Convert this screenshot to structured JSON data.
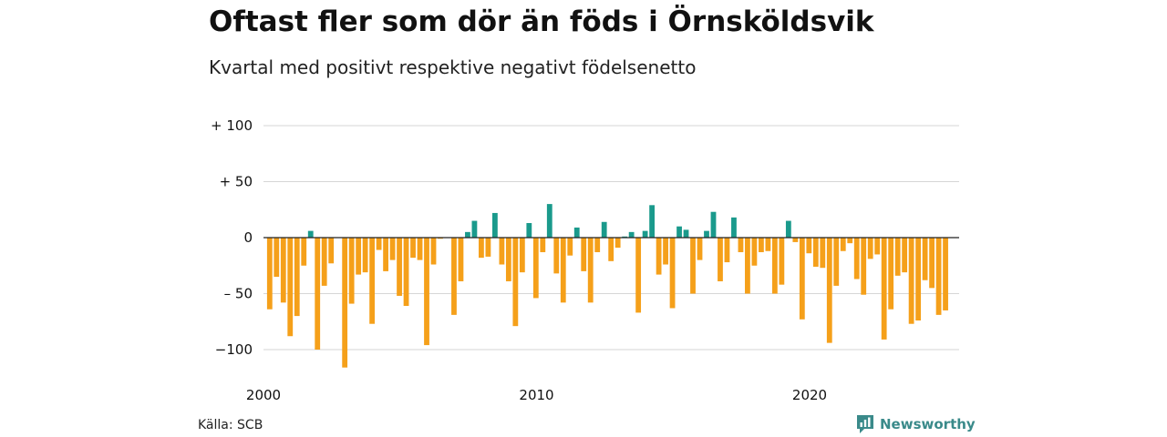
{
  "header": {
    "title": "Oftast fler som dör än föds i Örnsköldsvik",
    "subtitle": "Kvartal med positivt respektive negativt födelsenetto"
  },
  "footer": {
    "source": "Källa: SCB",
    "brand": "Newsworthy"
  },
  "colors": {
    "positive": "#1a9a8c",
    "negative": "#f5a01a",
    "grid": "#d6d6d6",
    "brand": "#3a8a8a"
  },
  "icons": {
    "brand": "newsworthy-chart-icon"
  },
  "chart_data": {
    "type": "bar",
    "x_start": 2000,
    "x_step": 0.25,
    "x_ticks": [
      2000,
      2010,
      2020
    ],
    "x_tick_labels": [
      "2000",
      "2010",
      "2020"
    ],
    "y_ticks": [
      100,
      50,
      0,
      -50,
      -100
    ],
    "y_tick_labels": [
      "+ 100",
      "+  50",
      "0",
      "– 50",
      "−100"
    ],
    "ylim": [
      -118,
      100
    ],
    "grid": true,
    "values": [
      -64,
      -35,
      -58,
      -88,
      -70,
      -25,
      6,
      -100,
      -43,
      -23,
      0,
      -116,
      -59,
      -33,
      -31,
      -77,
      -11,
      -30,
      -20,
      -52,
      -61,
      -18,
      -20,
      -96,
      -24,
      -1,
      0,
      -69,
      -39,
      5,
      15,
      -18,
      -17,
      22,
      -24,
      -39,
      -79,
      -31,
      13,
      -54,
      -13,
      30,
      -32,
      -58,
      -16,
      9,
      -30,
      -58,
      -13,
      14,
      -21,
      -9,
      1,
      5,
      -67,
      6,
      29,
      -33,
      -24,
      -63,
      10,
      7,
      -50,
      -20,
      6,
      23,
      -39,
      -22,
      18,
      -13,
      -50,
      -25,
      -13,
      -12,
      -50,
      -42,
      15,
      -4,
      -73,
      -14,
      -26,
      -27,
      -94,
      -43,
      -12,
      -5,
      -37,
      -51,
      -19,
      -15,
      -91,
      -64,
      -34,
      -31,
      -77,
      -74,
      -38,
      -45,
      -69,
      -65
    ]
  }
}
